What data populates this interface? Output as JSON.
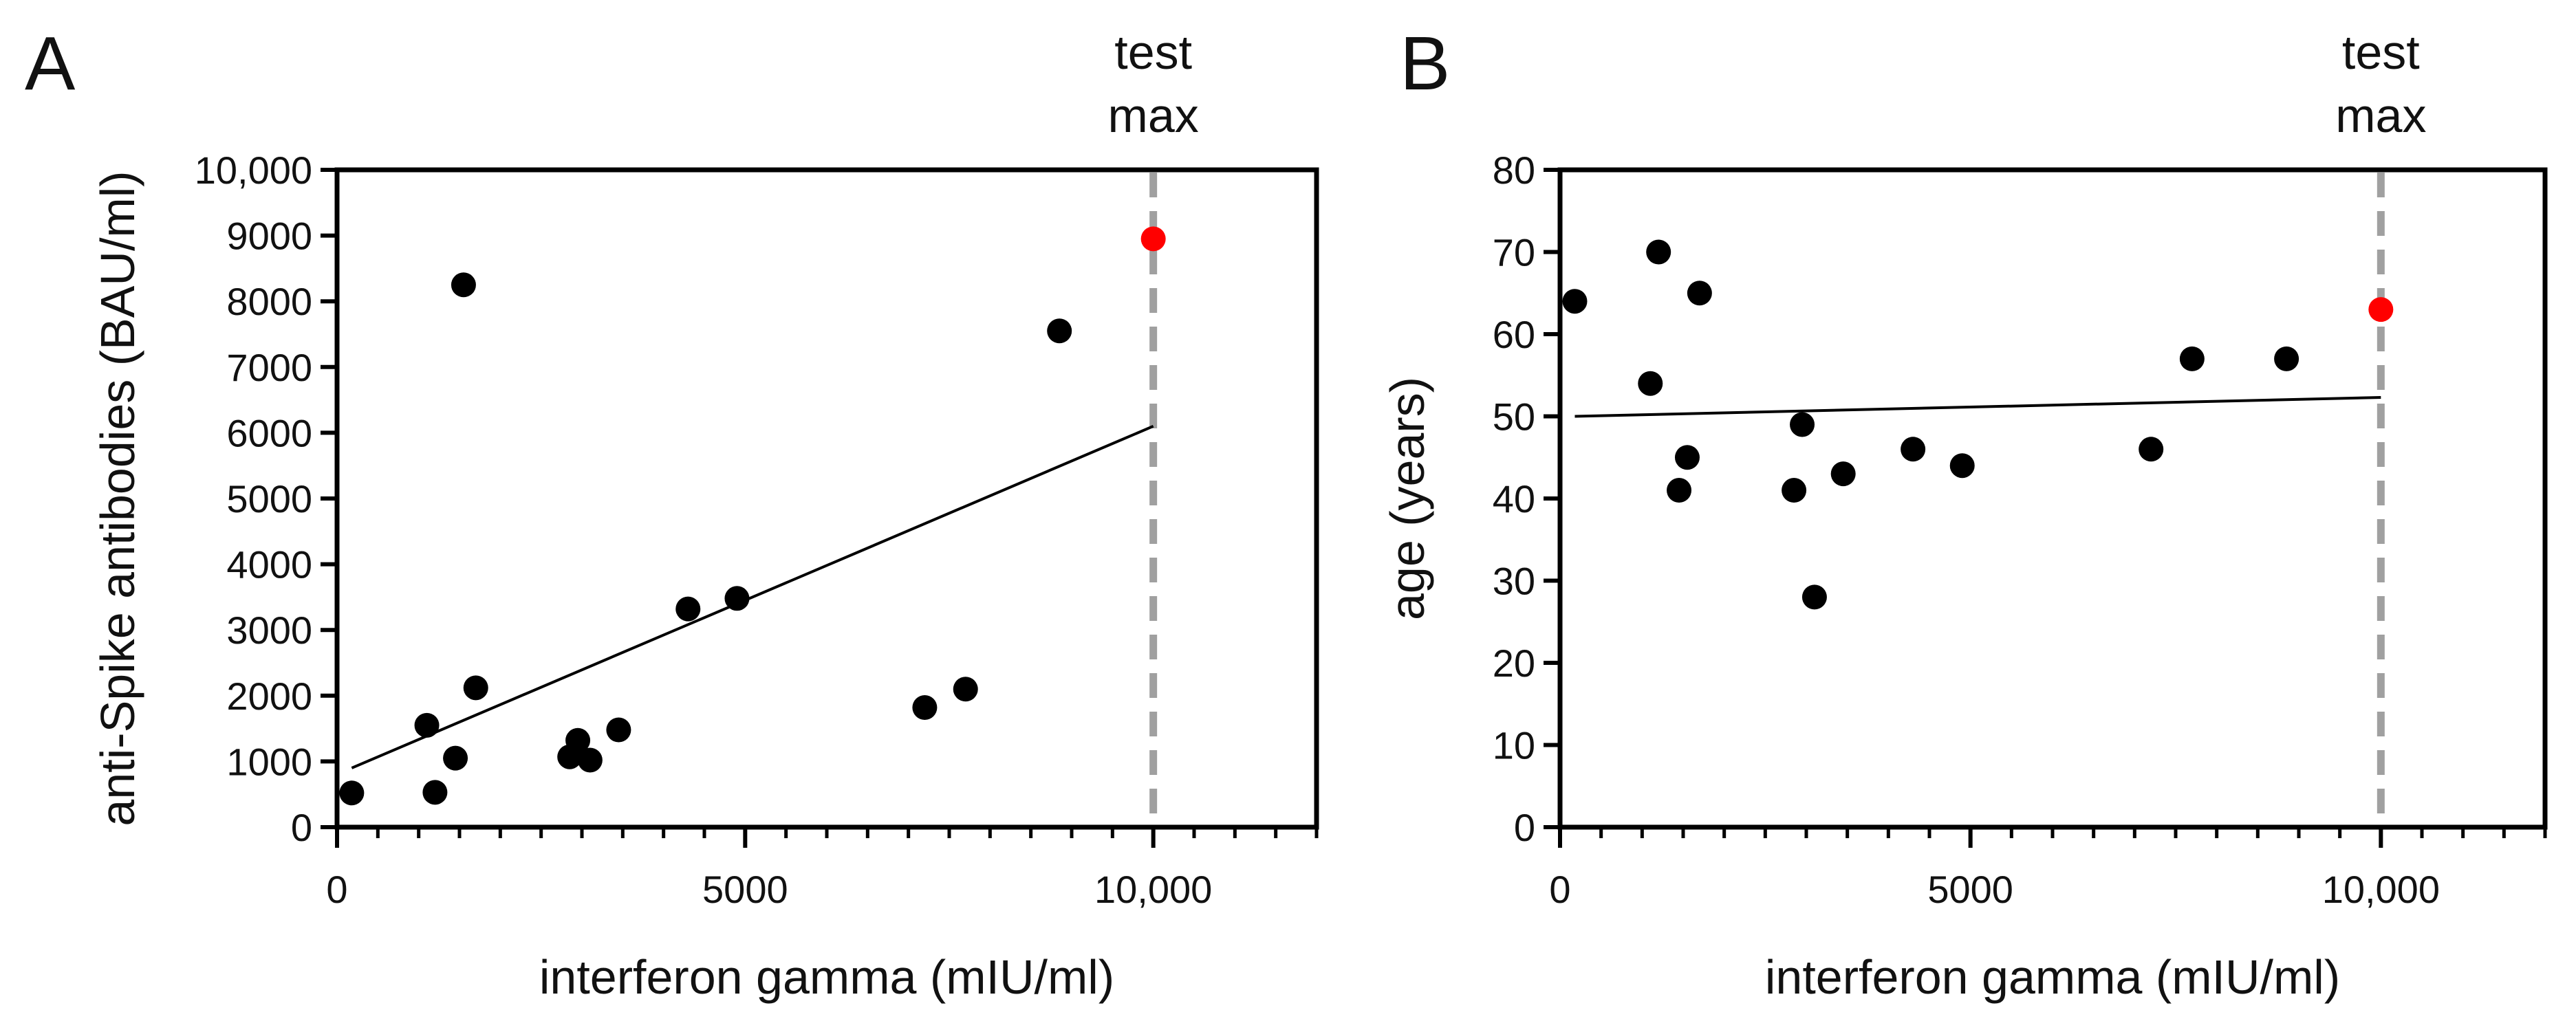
{
  "chart_data": [
    {
      "panel_label": "A",
      "type": "scatter",
      "xlabel": "interferon gamma (mIU/ml)",
      "ylabel": "anti-Spike antibodies (BAU/ml)",
      "xlim": [
        0,
        12000
      ],
      "ylim": [
        0,
        10000
      ],
      "xticks": [
        0,
        5000,
        10000
      ],
      "xtick_labels": [
        "0",
        "5000",
        "10,000"
      ],
      "x_minor_step": 500,
      "yticks": [
        0,
        1000,
        2000,
        3000,
        4000,
        5000,
        6000,
        7000,
        8000,
        9000,
        10000
      ],
      "ytick_labels": [
        "0",
        "1000",
        "2000",
        "3000",
        "4000",
        "5000",
        "6000",
        "7000",
        "8000",
        "9000",
        "10,000"
      ],
      "points": [
        {
          "x": 180,
          "y": 520
        },
        {
          "x": 1100,
          "y": 1550
        },
        {
          "x": 1200,
          "y": 530
        },
        {
          "x": 1450,
          "y": 1050
        },
        {
          "x": 1550,
          "y": 8250
        },
        {
          "x": 1700,
          "y": 2120
        },
        {
          "x": 2850,
          "y": 1070
        },
        {
          "x": 2950,
          "y": 1320
        },
        {
          "x": 3100,
          "y": 1020
        },
        {
          "x": 3450,
          "y": 1480
        },
        {
          "x": 4300,
          "y": 3320
        },
        {
          "x": 4900,
          "y": 3480
        },
        {
          "x": 7200,
          "y": 1820
        },
        {
          "x": 7700,
          "y": 2100
        },
        {
          "x": 8850,
          "y": 7550
        }
      ],
      "highlight_point": {
        "x": 10000,
        "y": 8950,
        "color": "#ff0000"
      },
      "fit_line": {
        "x": [
          180,
          10000
        ],
        "y": [
          900,
          6100
        ]
      },
      "reference_line": {
        "x": 10000,
        "label_line1": "test",
        "label_line2": "max",
        "color": "#a0a0a0"
      },
      "point_color": "#000000"
    },
    {
      "panel_label": "B",
      "type": "scatter",
      "xlabel": "interferon gamma (mIU/ml)",
      "ylabel": "age (years)",
      "xlim": [
        0,
        12000
      ],
      "ylim": [
        0,
        80
      ],
      "xticks": [
        0,
        5000,
        10000
      ],
      "xtick_labels": [
        "0",
        "5000",
        "10,000"
      ],
      "x_minor_step": 500,
      "yticks": [
        0,
        10,
        20,
        30,
        40,
        50,
        60,
        70,
        80
      ],
      "ytick_labels": [
        "0",
        "10",
        "20",
        "30",
        "40",
        "50",
        "60",
        "70",
        "80"
      ],
      "points": [
        {
          "x": 180,
          "y": 64
        },
        {
          "x": 1100,
          "y": 54
        },
        {
          "x": 1200,
          "y": 70
        },
        {
          "x": 1450,
          "y": 41
        },
        {
          "x": 1550,
          "y": 45
        },
        {
          "x": 1700,
          "y": 65
        },
        {
          "x": 2850,
          "y": 41
        },
        {
          "x": 2950,
          "y": 49
        },
        {
          "x": 3100,
          "y": 28
        },
        {
          "x": 3450,
          "y": 43
        },
        {
          "x": 4300,
          "y": 46
        },
        {
          "x": 4900,
          "y": 44
        },
        {
          "x": 7200,
          "y": 46
        },
        {
          "x": 7700,
          "y": 57
        },
        {
          "x": 8850,
          "y": 57
        }
      ],
      "highlight_point": {
        "x": 10000,
        "y": 63,
        "color": "#ff0000"
      },
      "fit_line": {
        "x": [
          180,
          10000
        ],
        "y": [
          50,
          52.3
        ]
      },
      "reference_line": {
        "x": 10000,
        "label_line1": "test",
        "label_line2": "max",
        "color": "#a0a0a0"
      },
      "point_color": "#000000"
    }
  ]
}
